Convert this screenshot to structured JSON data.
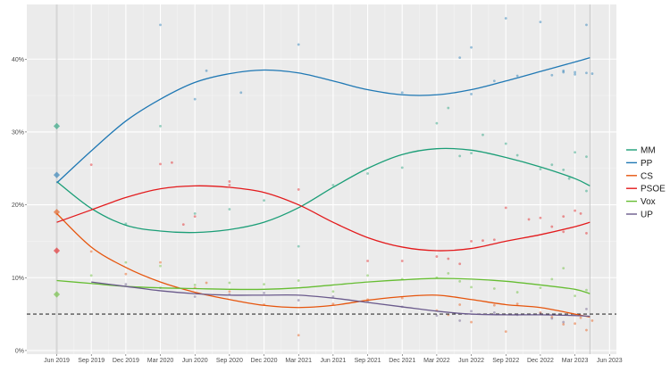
{
  "chart_data": {
    "type": "line",
    "title": "",
    "xlabel": "",
    "ylabel": "",
    "x_tick_labels": [
      "Jun 2019",
      "Sep 2019",
      "Dec 2019",
      "Mar 2020",
      "Jun 2020",
      "Sep 2020",
      "Dec 2020",
      "Mar 2021",
      "Jun 2021",
      "Sep 2021",
      "Dec 2021",
      "Mar 2022",
      "Jun 2022",
      "Sep 2022",
      "Dec 2022",
      "Mar 2023",
      "Jun 2023"
    ],
    "x_tick_months": [
      0,
      3,
      6,
      9,
      12,
      15,
      18,
      21,
      24,
      27,
      30,
      33,
      36,
      39,
      42,
      45,
      48
    ],
    "xlim_months": [
      -2.6,
      48.6
    ],
    "y_tick_labels": [
      "0%",
      "10%",
      "20%",
      "30%",
      "40%"
    ],
    "y_tick_values": [
      0,
      10,
      20,
      30,
      40
    ],
    "ylim": [
      -0.5,
      47.5
    ],
    "grid": true,
    "legend_position": "right",
    "threshold": {
      "y": 5,
      "style": "dashed"
    },
    "election_marker_month": 0,
    "poll_end_month": 46.3,
    "series": [
      {
        "name": "MM",
        "color": "#1b9e77",
        "trend": [
          [
            0,
            23.2
          ],
          [
            3,
            19.5
          ],
          [
            6,
            17.2
          ],
          [
            9,
            16.4
          ],
          [
            12,
            16.2
          ],
          [
            15,
            16.6
          ],
          [
            18,
            17.6
          ],
          [
            21,
            19.6
          ],
          [
            24,
            22.4
          ],
          [
            27,
            25.0
          ],
          [
            30,
            26.9
          ],
          [
            33,
            27.7
          ],
          [
            36,
            27.5
          ],
          [
            39,
            26.5
          ],
          [
            42,
            25.2
          ],
          [
            45,
            23.6
          ],
          [
            46.3,
            22.6
          ]
        ],
        "election": 30.8,
        "polls": [
          [
            6,
            17.4
          ],
          [
            9,
            30.8
          ],
          [
            12,
            18.8
          ],
          [
            15,
            19.4
          ],
          [
            18,
            20.6
          ],
          [
            21,
            14.3
          ],
          [
            24,
            22.7
          ],
          [
            27,
            24.3
          ],
          [
            30,
            25.1
          ],
          [
            33,
            31.2
          ],
          [
            34,
            33.3
          ],
          [
            35,
            26.7
          ],
          [
            36,
            27.1
          ],
          [
            37,
            29.6
          ],
          [
            39,
            28.4
          ],
          [
            40,
            26.8
          ],
          [
            42,
            24.9
          ],
          [
            43,
            25.5
          ],
          [
            44,
            24.8
          ],
          [
            44.5,
            23.6
          ],
          [
            45,
            27.2
          ],
          [
            46,
            26.6
          ],
          [
            46,
            21.9
          ]
        ]
      },
      {
        "name": "PP",
        "color": "#1f78b4",
        "trend": [
          [
            0,
            23.0
          ],
          [
            3,
            27.4
          ],
          [
            6,
            31.5
          ],
          [
            9,
            34.5
          ],
          [
            12,
            36.8
          ],
          [
            15,
            38.0
          ],
          [
            18,
            38.5
          ],
          [
            21,
            38.1
          ],
          [
            24,
            37.0
          ],
          [
            27,
            35.8
          ],
          [
            30,
            35.1
          ],
          [
            33,
            35.1
          ],
          [
            36,
            35.8
          ],
          [
            39,
            37.0
          ],
          [
            42,
            38.3
          ],
          [
            45,
            39.6
          ],
          [
            46.3,
            40.2
          ]
        ],
        "election": 24.1,
        "polls": [
          [
            9,
            44.7
          ],
          [
            12,
            34.5
          ],
          [
            13,
            38.4
          ],
          [
            16,
            35.4
          ],
          [
            21,
            42.0
          ],
          [
            30,
            35.4
          ],
          [
            35,
            40.2
          ],
          [
            36,
            41.6
          ],
          [
            36,
            35.2
          ],
          [
            38,
            37.0
          ],
          [
            39,
            45.6
          ],
          [
            40,
            37.7
          ],
          [
            42,
            45.1
          ],
          [
            43,
            37.8
          ],
          [
            44,
            38.2
          ],
          [
            44,
            38.4
          ],
          [
            45,
            37.9
          ],
          [
            45,
            38.2
          ],
          [
            46,
            38.1
          ],
          [
            46,
            44.7
          ],
          [
            46.5,
            38.0
          ]
        ]
      },
      {
        "name": "CS",
        "color": "#e6550d",
        "trend": [
          [
            0,
            18.8
          ],
          [
            3,
            14.2
          ],
          [
            6,
            11.4
          ],
          [
            9,
            9.4
          ],
          [
            12,
            8.0
          ],
          [
            15,
            7.0
          ],
          [
            18,
            6.2
          ],
          [
            21,
            5.9
          ],
          [
            24,
            6.2
          ],
          [
            27,
            6.9
          ],
          [
            30,
            7.4
          ],
          [
            33,
            7.6
          ],
          [
            36,
            7.0
          ],
          [
            39,
            6.3
          ],
          [
            42,
            5.9
          ],
          [
            45,
            5.0
          ],
          [
            46.3,
            4.6
          ]
        ],
        "election": 19.0,
        "polls": [
          [
            3,
            13.6
          ],
          [
            6,
            10.5
          ],
          [
            9,
            12.1
          ],
          [
            12,
            8.6
          ],
          [
            13,
            9.3
          ],
          [
            15,
            8.1
          ],
          [
            18,
            6.3
          ],
          [
            21,
            2.1
          ],
          [
            24,
            6.4
          ],
          [
            27,
            7.0
          ],
          [
            30,
            7.2
          ],
          [
            33,
            5.5
          ],
          [
            34,
            4.9
          ],
          [
            35,
            6.3
          ],
          [
            36,
            3.9
          ],
          [
            38,
            6.2
          ],
          [
            39,
            2.6
          ],
          [
            40,
            6.4
          ],
          [
            42,
            5.2
          ],
          [
            43,
            4.6
          ],
          [
            44,
            3.6
          ],
          [
            45,
            3.7
          ],
          [
            45.5,
            4.5
          ],
          [
            46,
            2.8
          ],
          [
            46.5,
            4.1
          ]
        ]
      },
      {
        "name": "PSOE",
        "color": "#e31a1c",
        "trend": [
          [
            0,
            17.6
          ],
          [
            3,
            19.3
          ],
          [
            6,
            21.0
          ],
          [
            9,
            22.2
          ],
          [
            12,
            22.6
          ],
          [
            15,
            22.4
          ],
          [
            18,
            21.7
          ],
          [
            21,
            20.0
          ],
          [
            24,
            17.6
          ],
          [
            27,
            15.5
          ],
          [
            30,
            14.2
          ],
          [
            33,
            13.7
          ],
          [
            36,
            14.0
          ],
          [
            39,
            15.0
          ],
          [
            42,
            15.9
          ],
          [
            45,
            17.0
          ],
          [
            46.3,
            17.6
          ]
        ],
        "election": 13.7,
        "polls": [
          [
            3,
            25.5
          ],
          [
            9,
            25.6
          ],
          [
            10,
            25.8
          ],
          [
            11,
            17.3
          ],
          [
            12,
            18.4
          ],
          [
            15,
            23.2
          ],
          [
            15,
            22.7
          ],
          [
            21,
            22.1
          ],
          [
            27,
            12.3
          ],
          [
            30,
            12.3
          ],
          [
            33,
            12.9
          ],
          [
            34,
            12.6
          ],
          [
            35,
            11.9
          ],
          [
            36,
            15.0
          ],
          [
            37,
            15.1
          ],
          [
            38,
            15.2
          ],
          [
            39,
            19.6
          ],
          [
            41,
            18.0
          ],
          [
            42,
            18.2
          ],
          [
            43,
            17.0
          ],
          [
            44,
            18.4
          ],
          [
            44,
            16.3
          ],
          [
            45,
            19.2
          ],
          [
            45.5,
            18.8
          ],
          [
            46,
            16.1
          ]
        ]
      },
      {
        "name": "Vox",
        "color": "#66bd32",
        "trend": [
          [
            0,
            9.6
          ],
          [
            3,
            9.2
          ],
          [
            6,
            8.8
          ],
          [
            9,
            8.6
          ],
          [
            12,
            8.5
          ],
          [
            15,
            8.4
          ],
          [
            18,
            8.4
          ],
          [
            21,
            8.6
          ],
          [
            24,
            9.0
          ],
          [
            27,
            9.4
          ],
          [
            30,
            9.7
          ],
          [
            33,
            9.9
          ],
          [
            36,
            9.8
          ],
          [
            39,
            9.5
          ],
          [
            42,
            9.0
          ],
          [
            45,
            8.4
          ],
          [
            46.3,
            7.8
          ]
        ],
        "election": 7.7,
        "polls": [
          [
            3,
            10.3
          ],
          [
            6,
            12.1
          ],
          [
            9,
            11.6
          ],
          [
            12,
            9.0
          ],
          [
            15,
            9.3
          ],
          [
            18,
            9.1
          ],
          [
            21,
            9.6
          ],
          [
            24,
            8.1
          ],
          [
            27,
            10.3
          ],
          [
            30,
            9.8
          ],
          [
            33,
            10.0
          ],
          [
            34,
            10.6
          ],
          [
            35,
            9.5
          ],
          [
            36,
            8.7
          ],
          [
            38,
            8.5
          ],
          [
            40,
            8.0
          ],
          [
            42,
            8.6
          ],
          [
            43,
            9.8
          ],
          [
            44,
            11.3
          ],
          [
            45,
            7.5
          ],
          [
            46,
            8.3
          ]
        ]
      },
      {
        "name": "UP",
        "color": "#6a5a8c",
        "trend": [
          [
            3,
            9.4
          ],
          [
            6,
            8.8
          ],
          [
            9,
            8.2
          ],
          [
            12,
            7.8
          ],
          [
            15,
            7.6
          ],
          [
            18,
            7.6
          ],
          [
            21,
            7.6
          ],
          [
            24,
            7.2
          ],
          [
            27,
            6.6
          ],
          [
            30,
            6.0
          ],
          [
            33,
            5.4
          ],
          [
            36,
            5.0
          ],
          [
            39,
            4.9
          ],
          [
            42,
            4.9
          ],
          [
            45,
            4.8
          ],
          [
            46.3,
            4.7
          ]
        ],
        "election": null,
        "polls": [
          [
            6,
            9.1
          ],
          [
            9,
            8.6
          ],
          [
            12,
            7.4
          ],
          [
            15,
            7.7
          ],
          [
            18,
            7.9
          ],
          [
            21,
            6.9
          ],
          [
            24,
            7.4
          ],
          [
            27,
            6.7
          ],
          [
            30,
            6.0
          ],
          [
            33,
            4.8
          ],
          [
            35,
            4.1
          ],
          [
            36,
            5.4
          ],
          [
            38,
            5.2
          ],
          [
            40,
            4.9
          ],
          [
            42,
            5.1
          ],
          [
            43,
            4.4
          ],
          [
            44,
            3.9
          ],
          [
            45,
            4.9
          ],
          [
            46,
            5.7
          ]
        ]
      }
    ]
  }
}
